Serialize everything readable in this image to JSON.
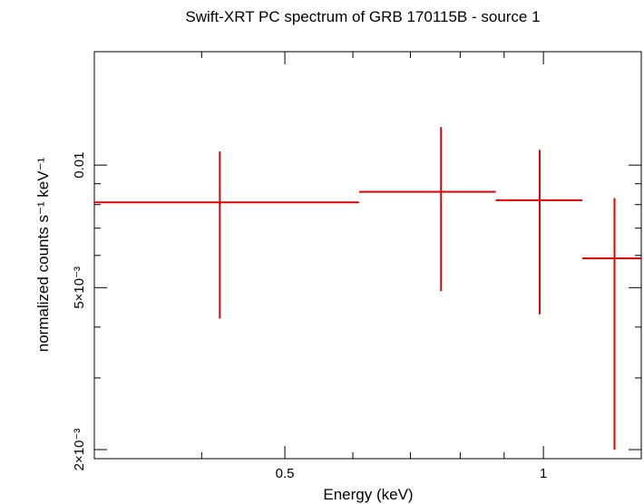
{
  "chart_data": {
    "type": "scatter",
    "title": "Swift-XRT PC spectrum of GRB 170115B - source 1",
    "xlabel": "Energy (keV)",
    "ylabel": "normalized counts s⁻¹ keV⁻¹",
    "xscale": "log",
    "yscale": "log",
    "xlim": [
      0.3,
      1.3
    ],
    "ylim": [
      0.0019,
      0.019
    ],
    "x_ticklabels": [
      {
        "value": 0.5,
        "label": "0.5"
      },
      {
        "value": 1,
        "label": "1"
      }
    ],
    "y_ticklabels": [
      {
        "value": 0.002,
        "label": "2×10⁻³"
      },
      {
        "value": 0.005,
        "label": "5×10⁻³"
      },
      {
        "value": 0.01,
        "label": "0.01"
      }
    ],
    "grid": false,
    "color": "#e00000",
    "series": [
      {
        "points": [
          {
            "x": 0.42,
            "xlo": 0.3,
            "xhi": 0.61,
            "y": 0.0081,
            "ylo": 0.0042,
            "yhi": 0.0108
          },
          {
            "x": 0.76,
            "xlo": 0.61,
            "xhi": 0.88,
            "y": 0.0086,
            "ylo": 0.0049,
            "yhi": 0.0124
          },
          {
            "x": 0.99,
            "xlo": 0.88,
            "xhi": 1.11,
            "y": 0.0082,
            "ylo": 0.0043,
            "yhi": 0.0109
          },
          {
            "x": 1.21,
            "xlo": 1.11,
            "xhi": 1.3,
            "y": 0.0059,
            "ylo": 0.002,
            "yhi": 0.0083
          }
        ]
      }
    ]
  }
}
